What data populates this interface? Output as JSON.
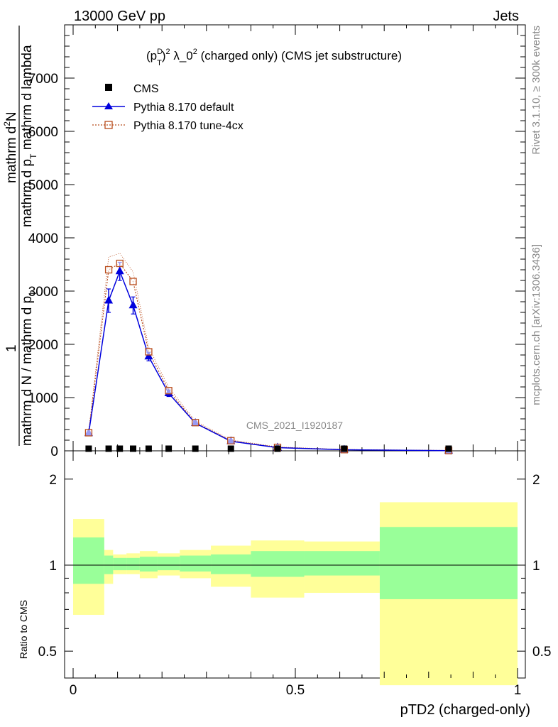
{
  "header": {
    "energy": "13000 GeV pp",
    "process": "Jets",
    "rivet": "Rivet 3.1.10, ≥ 300k events",
    "mcplots": "mcplots.cern.ch [arXiv:1306.3436]"
  },
  "chart_data": [
    {
      "type": "line",
      "title": "(p_T^D)^2 λ_0^2 (charged only) (CMS jet substructure)",
      "title_parts": {
        "p": "(p",
        "sup_d": "D",
        "sub_t": "T",
        "close": ")",
        "sup2": "2",
        "lam": " λ_0",
        "sup2b": "2",
        "rest": " (charged only) (CMS jet substructure)"
      },
      "ylabel_parts": [
        "1",
        "mathrm d N / mathrm d p_T",
        "mathrm d^2N",
        "mathrm d p_T mathrm d lambda"
      ],
      "ylabel_lines": {
        "top": "mathrm d",
        "top_sup": "2",
        "top_end": "N",
        "one": "1",
        "denom1": "mathrm d p",
        "denom1_sub": "T",
        "denom1_end": " mathrm d lambda",
        "bottom": "mathrm d N / mathrm d p",
        "bottom_sub": "T"
      },
      "watermark": "CMS_2021_I1920187",
      "xlim": [
        0,
        1
      ],
      "ylim": [
        0,
        8000
      ],
      "yticks": [
        0,
        1000,
        2000,
        3000,
        4000,
        5000,
        6000,
        7000
      ],
      "ytick_labels": [
        "0",
        "1000",
        "2000",
        "3000",
        "4000",
        "5000",
        "6000",
        "7000"
      ],
      "x": [
        0.035,
        0.08,
        0.105,
        0.135,
        0.17,
        0.215,
        0.275,
        0.355,
        0.46,
        0.61,
        0.845
      ],
      "series": [
        {
          "name": "CMS",
          "color": "#000000",
          "marker": "square",
          "values": [
            22,
            30,
            32,
            30,
            25,
            20,
            15,
            8,
            4,
            1.5,
            0.3
          ]
        },
        {
          "name": "Pythia 8.170 default",
          "color": "#0000dd",
          "marker": "triangle",
          "values": [
            330,
            2820,
            3370,
            2730,
            1770,
            1080,
            520,
            180,
            60,
            20,
            4
          ],
          "errors": [
            25,
            220,
            170,
            160,
            80,
            60,
            30,
            15,
            8,
            4,
            1
          ]
        },
        {
          "name": "Pythia 8.170 tune-4cx",
          "color": "#b84a1a",
          "marker": "open-square",
          "values": [
            340,
            3400,
            3520,
            3180,
            1860,
            1130,
            530,
            190,
            65,
            22,
            5
          ],
          "errors": [
            25,
            240,
            190,
            180,
            90,
            60,
            30,
            15,
            8,
            4,
            1
          ]
        }
      ]
    },
    {
      "type": "area",
      "ylabel": "Ratio to CMS",
      "xlabel": "pTD2 (charged-only)",
      "xlim": [
        0,
        1
      ],
      "ylim": [
        0.35,
        2.3
      ],
      "yticks": [
        0.5,
        1,
        2
      ],
      "ytick_labels": [
        "0.5",
        "1",
        "2"
      ],
      "xticks": [
        0,
        0.5,
        1
      ],
      "xtick_labels": [
        "0",
        "0.5",
        "1"
      ],
      "bins": [
        {
          "lo": 0.0,
          "hi": 0.07,
          "stat": [
            0.86,
            1.25
          ],
          "tot": [
            0.67,
            1.45
          ]
        },
        {
          "lo": 0.07,
          "hi": 0.09,
          "stat": [
            0.93,
            1.08
          ],
          "tot": [
            0.86,
            1.13
          ]
        },
        {
          "lo": 0.09,
          "hi": 0.12,
          "stat": [
            0.96,
            1.06
          ],
          "tot": [
            0.93,
            1.09
          ]
        },
        {
          "lo": 0.12,
          "hi": 0.15,
          "stat": [
            0.96,
            1.06
          ],
          "tot": [
            0.93,
            1.1
          ]
        },
        {
          "lo": 0.15,
          "hi": 0.19,
          "stat": [
            0.95,
            1.07
          ],
          "tot": [
            0.9,
            1.12
          ]
        },
        {
          "lo": 0.19,
          "hi": 0.24,
          "stat": [
            0.96,
            1.07
          ],
          "tot": [
            0.92,
            1.1
          ]
        },
        {
          "lo": 0.24,
          "hi": 0.31,
          "stat": [
            0.95,
            1.08
          ],
          "tot": [
            0.9,
            1.13
          ]
        },
        {
          "lo": 0.31,
          "hi": 0.4,
          "stat": [
            0.93,
            1.09
          ],
          "tot": [
            0.84,
            1.17
          ]
        },
        {
          "lo": 0.4,
          "hi": 0.52,
          "stat": [
            0.91,
            1.12
          ],
          "tot": [
            0.77,
            1.22
          ]
        },
        {
          "lo": 0.52,
          "hi": 0.69,
          "stat": [
            0.92,
            1.12
          ],
          "tot": [
            0.8,
            1.21
          ]
        },
        {
          "lo": 0.69,
          "hi": 1.0,
          "stat": [
            0.76,
            1.36
          ],
          "tot": [
            0.38,
            1.66
          ]
        }
      ],
      "band_colors": {
        "stat": "#99ff99",
        "tot": "#ffff99"
      }
    }
  ]
}
